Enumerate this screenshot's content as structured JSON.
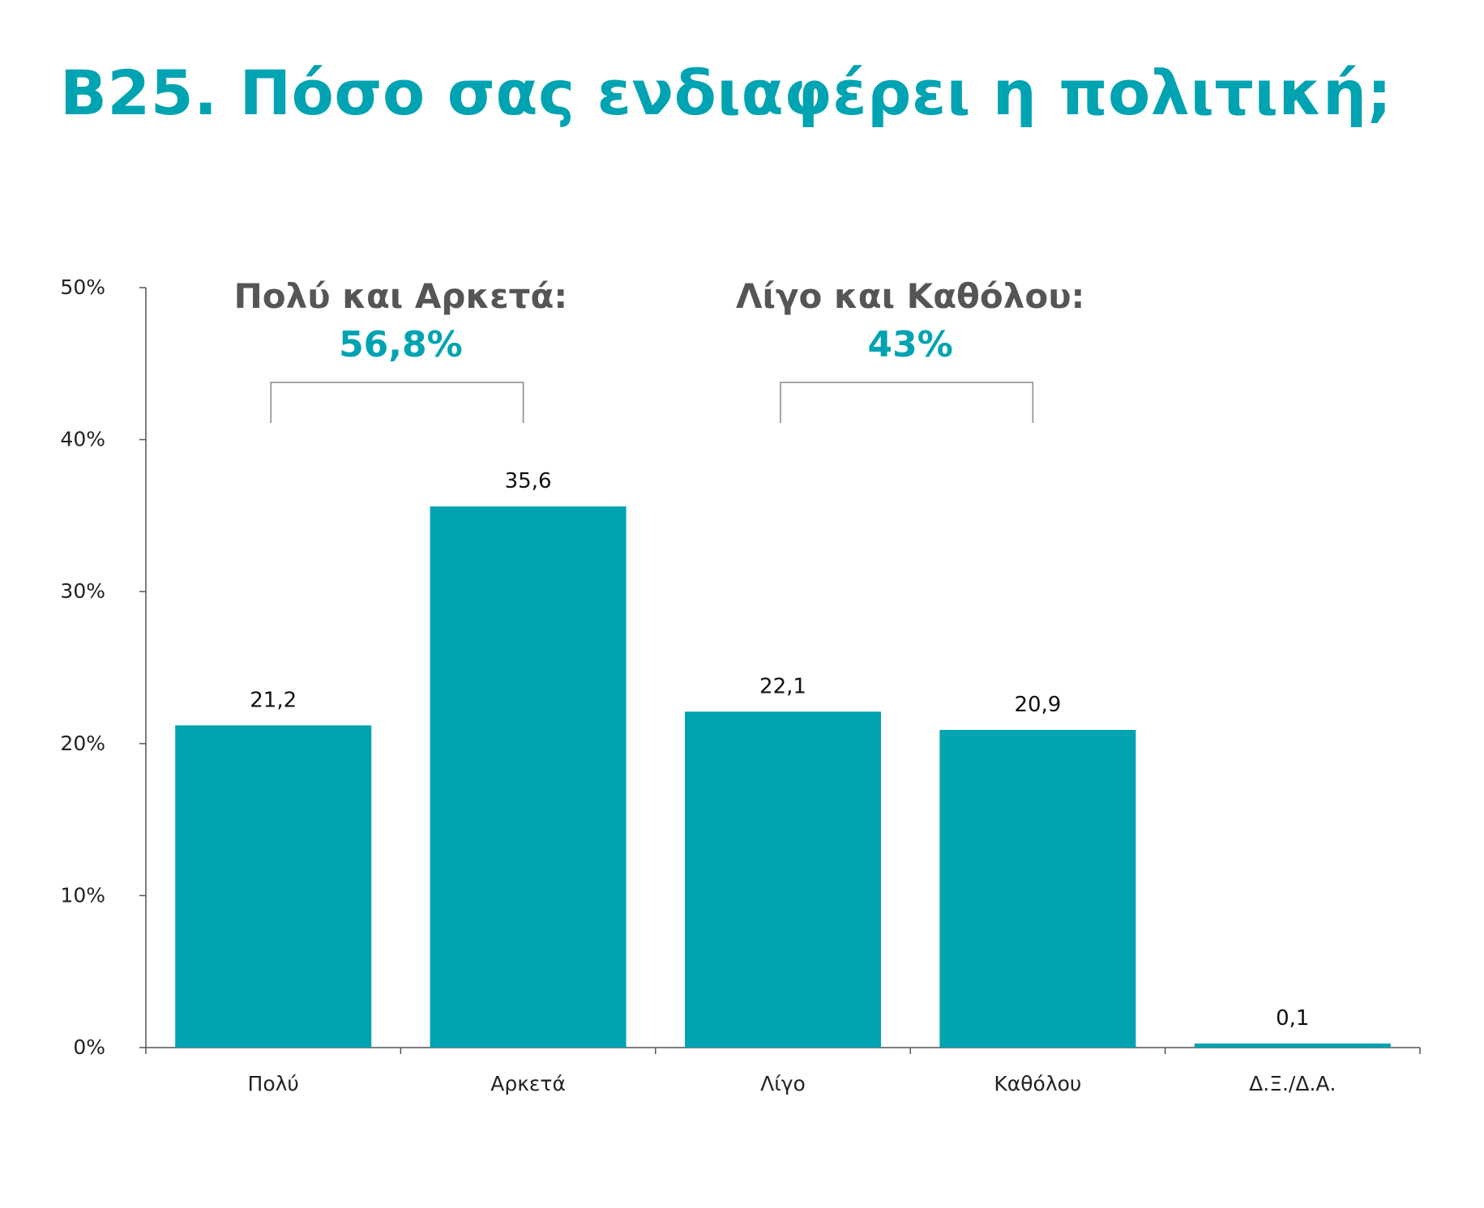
{
  "title": "B25. Πόσο σας ενδιαφέρει η πολιτική;",
  "colors": {
    "accent": "#00A3B1",
    "axis": "#555555",
    "bracket": "#888888"
  },
  "chart_data": {
    "type": "bar",
    "categories": [
      "Πολύ",
      "Αρκετά",
      "Λίγο",
      "Καθόλου",
      "Δ.Ξ./Δ.Α."
    ],
    "values": [
      21.2,
      35.6,
      22.1,
      20.9,
      0.1
    ],
    "value_labels": [
      "21,2",
      "35,6",
      "22,1",
      "20,9",
      "0,1"
    ],
    "ylim": [
      0,
      50
    ],
    "yticks": [
      0,
      10,
      20,
      30,
      40,
      50
    ],
    "ytick_labels": [
      "0%",
      "10%",
      "20%",
      "30%",
      "40%",
      "50%"
    ],
    "grid": false,
    "annotations": [
      {
        "label": "Πολύ και Αρκετά:",
        "value": "56,8%",
        "spans": [
          0,
          1
        ]
      },
      {
        "label": "Λίγο και Καθόλου:",
        "value": "43%",
        "spans": [
          2,
          3
        ]
      }
    ]
  }
}
